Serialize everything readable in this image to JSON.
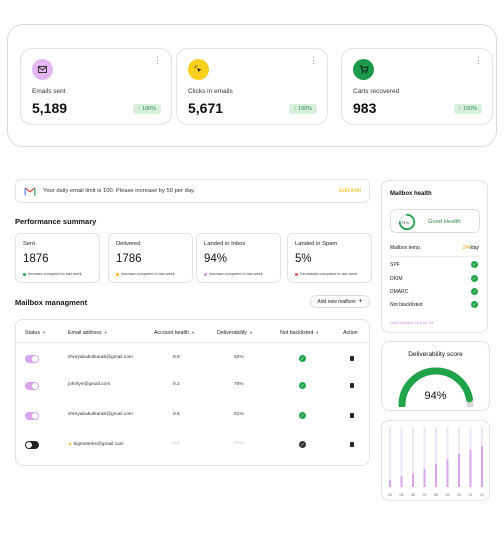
{
  "stats": [
    {
      "label": "Emails sent",
      "value": "5,189",
      "badge": "↑ 100%",
      "icon": "envelope-icon",
      "icon_bg": "#e3b7f1"
    },
    {
      "label": "Clicks in emails",
      "value": "5,671",
      "badge": "↑ 100%",
      "icon": "cursor-click-icon",
      "icon_bg": "#f7cf1d"
    },
    {
      "label": "Carts recovered",
      "value": "983",
      "badge": "↑ 100%",
      "icon": "cart-icon",
      "icon_bg": "#1b9a4b"
    }
  ],
  "banner": {
    "message": "Your daily email limit is 100. Please increase by 50 per day.",
    "action": "Edit limit"
  },
  "performance": {
    "title": "Performance summary",
    "cards": [
      {
        "label": "Sent",
        "value": "1876",
        "note": "Increase compared to last week",
        "dot": "#1fa44a"
      },
      {
        "label": "Delivered",
        "value": "1786",
        "note": "Increase compared to last week",
        "dot": "#f0b400"
      },
      {
        "label": "Landed in Inbox",
        "value": "94%",
        "note": "Increase compared to last week",
        "dot": "#d38ae8"
      },
      {
        "label": "Landed in Spam",
        "value": "5%",
        "note": "Decreased compared to last week",
        "dot": "#e25a5a"
      }
    ]
  },
  "mailbox": {
    "title": "Mailbox managment",
    "add_label": "Add new mailbox",
    "columns": {
      "status": "Status",
      "email": "Email address",
      "health": "Account health",
      "deliverability": "Deliverability",
      "blacklist": "Not backlisted",
      "action": "Action"
    },
    "rows": [
      {
        "active": true,
        "email": "shreyababulkarab@gmail.com",
        "health": "8.9",
        "deliverability": "82%",
        "warning": false
      },
      {
        "active": true,
        "email": "johnfye@gmail.com",
        "health": "9.2",
        "deliverability": "78%",
        "warning": false
      },
      {
        "active": true,
        "email": "shreyababulkarab@gmail.com",
        "health": "9.5",
        "deliverability": "81%",
        "warning": false
      },
      {
        "active": false,
        "email": "bigmeterks@gmail.com",
        "health": "5.9",
        "deliverability": "40%",
        "warning": true
      }
    ]
  },
  "health": {
    "title": "Mailbox health",
    "percent_label": "74%",
    "percent": 74,
    "status": "Good Health",
    "temp_label": "Mailbox temp.",
    "temp_value": "2/4",
    "temp_unit": "/day",
    "checks": [
      "SPF",
      "DKIM",
      "DMARC",
      "Not blacklisted"
    ],
    "footer": "Last updated 14 Dec '23"
  },
  "score": {
    "title": "Deliverability score",
    "value": "94%",
    "percent": 94
  },
  "chart_data": {
    "type": "bar",
    "categories": [
      "04",
      "05",
      "06",
      "07",
      "08",
      "09",
      "10",
      "11",
      "12"
    ],
    "values": [
      12,
      18,
      22,
      30,
      38,
      46,
      55,
      62,
      68
    ],
    "ylim": [
      0,
      100
    ]
  },
  "colors": {
    "accent_purple": "#d7a4ee",
    "green": "#1fa44a",
    "yellow": "#f0b400"
  }
}
